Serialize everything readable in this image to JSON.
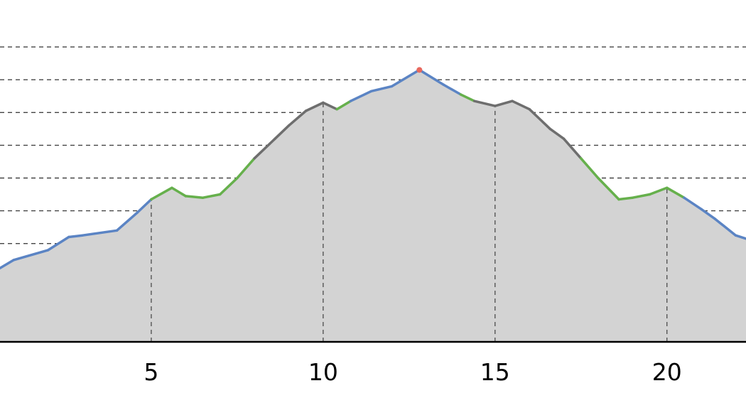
{
  "chart_data": {
    "type": "area",
    "title": "",
    "xlabel": "",
    "ylabel": "",
    "xlim": [
      0.6,
      22.3
    ],
    "ylim": [
      0,
      10
    ],
    "x_ticks": [
      5,
      10,
      15,
      20
    ],
    "x_tick_labels": [
      "5",
      "10",
      "15",
      "20"
    ],
    "y_grid_lines": [
      1,
      2,
      3,
      4,
      5,
      6,
      7,
      8,
      9
    ],
    "grid": true,
    "fill_color": "#d3d3d3",
    "series": [
      {
        "x": [
          0.6,
          1.0,
          2.0,
          2.6,
          3.0,
          4.0,
          4.6,
          5.0,
          5.6,
          6.0,
          6.5,
          7.0,
          7.5,
          8.0,
          8.6,
          9.0,
          9.5,
          10.0,
          10.4,
          10.8,
          11.4,
          12.0,
          12.8,
          13.5,
          14.0,
          14.4,
          15.0,
          15.5,
          16.0,
          16.6,
          17.0,
          17.5,
          18.0,
          18.6,
          19.0,
          19.5,
          20.0,
          20.5,
          21.0,
          21.4,
          22.0,
          22.3
        ],
        "y": [
          2.25,
          2.5,
          2.8,
          3.2,
          3.25,
          3.4,
          3.95,
          4.35,
          4.7,
          4.45,
          4.4,
          4.5,
          5.0,
          5.6,
          6.2,
          6.6,
          7.05,
          7.3,
          7.1,
          7.35,
          7.65,
          7.8,
          8.3,
          7.85,
          7.55,
          7.35,
          7.2,
          7.35,
          7.1,
          6.5,
          6.2,
          5.6,
          5.0,
          4.35,
          4.4,
          4.5,
          4.7,
          4.4,
          4.05,
          3.75,
          3.25,
          3.15
        ],
        "colors": [
          "#5b84c4",
          "#5b84c4",
          "#5b84c4",
          "#5b84c4",
          "#5b84c4",
          "#5b84c4",
          "#5b84c4",
          "#66b04c",
          "#66b04c",
          "#66b04c",
          "#66b04c",
          "#66b04c",
          "#66b04c",
          "#6e6e6e",
          "#6e6e6e",
          "#6e6e6e",
          "#6e6e6e",
          "#6e6e6e",
          "#66b04c",
          "#5b84c4",
          "#5b84c4",
          "#5b84c4",
          "#5b84c4",
          "#5b84c4",
          "#66b04c",
          "#6e6e6e",
          "#6e6e6e",
          "#6e6e6e",
          "#6e6e6e",
          "#6e6e6e",
          "#6e6e6e",
          "#66b04c",
          "#66b04c",
          "#66b04c",
          "#66b04c",
          "#66b04c",
          "#66b04c",
          "#5b84c4",
          "#5b84c4",
          "#5b84c4",
          "#5b84c4"
        ],
        "peak": {
          "x": 12.8,
          "y": 8.3,
          "color": "#e8685e"
        }
      }
    ]
  }
}
